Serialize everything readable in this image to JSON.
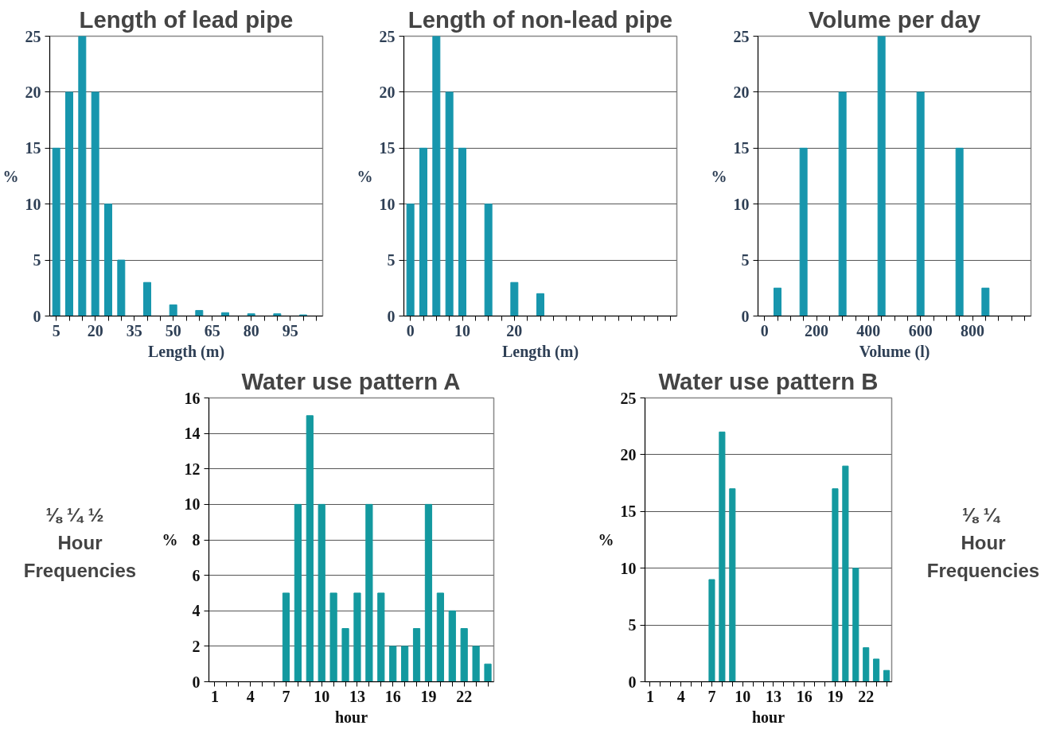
{
  "chart_data": [
    {
      "type": "bar",
      "title": "Length of lead pipe",
      "xlabel": "Length (m)",
      "ylabel": "%",
      "x": [
        5,
        10,
        15,
        20,
        25,
        30,
        40,
        50,
        60,
        70,
        80,
        90,
        100
      ],
      "series": [
        {
          "color": "#1796ad",
          "values": [
            15,
            20,
            25,
            20,
            10,
            5,
            3,
            1,
            0.5,
            0.3,
            0.2,
            0.2,
            0.1
          ]
        }
      ],
      "xlim": [
        2.5,
        107.5
      ],
      "xticks": [
        5,
        {
          "value": 10,
          "label": null
        },
        {
          "value": 15,
          "label": null
        },
        20,
        {
          "value": 25,
          "label": null
        },
        {
          "value": 30,
          "label": null
        },
        35,
        {
          "value": 40,
          "label": null
        },
        {
          "value": 45,
          "label": null
        },
        50,
        {
          "value": 55,
          "label": null
        },
        {
          "value": 60,
          "label": null
        },
        65,
        {
          "value": 70,
          "label": null
        },
        {
          "value": 75,
          "label": null
        },
        80,
        {
          "value": 85,
          "label": null
        },
        {
          "value": 90,
          "label": null
        },
        95,
        {
          "value": 100,
          "label": null
        },
        {
          "value": 105,
          "label": null
        }
      ],
      "ylim": [
        0,
        25
      ],
      "yticks": [
        0,
        5,
        10,
        15,
        20,
        25
      ],
      "grid": "y"
    },
    {
      "type": "bar",
      "title": "Length of non-lead pipe",
      "xlabel": "Length (m)",
      "ylabel": "%",
      "x": [
        0,
        2.5,
        5,
        7.5,
        10,
        15,
        20,
        25
      ],
      "series": [
        {
          "color": "#1796ad",
          "values": [
            10,
            15,
            25,
            20,
            15,
            10,
            3,
            2
          ]
        }
      ],
      "xlim": [
        -1.25,
        51.25
      ],
      "xticks": [
        0,
        {
          "value": 2.5,
          "label": null
        },
        {
          "value": 5,
          "label": null
        },
        {
          "value": 7.5,
          "label": null
        },
        10,
        {
          "value": 12.5,
          "label": null
        },
        {
          "value": 15,
          "label": null
        },
        {
          "value": 17.5,
          "label": null
        },
        20,
        {
          "value": 22.5,
          "label": null
        },
        {
          "value": 25,
          "label": null
        },
        {
          "value": 27.5,
          "label": null
        },
        {
          "value": 30,
          "label": null
        },
        {
          "value": 32.5,
          "label": null
        },
        {
          "value": 35,
          "label": null
        },
        {
          "value": 37.5,
          "label": null
        },
        {
          "value": 40,
          "label": null
        },
        {
          "value": 42.5,
          "label": null
        },
        {
          "value": 45,
          "label": null
        },
        {
          "value": 47.5,
          "label": null
        },
        {
          "value": 50,
          "label": null
        }
      ],
      "ylim": [
        0,
        25
      ],
      "yticks": [
        0,
        5,
        10,
        15,
        20,
        25
      ],
      "grid": "y"
    },
    {
      "type": "bar",
      "title": "Volume per day",
      "xlabel": "Volume (l)",
      "ylabel": "%",
      "x": [
        50,
        150,
        300,
        450,
        600,
        750,
        850
      ],
      "series": [
        {
          "color": "#1796ad",
          "values": [
            2.5,
            15,
            20,
            25,
            20,
            15,
            2.5
          ]
        }
      ],
      "xlim": [
        -25,
        1025
      ],
      "xticks": [
        0,
        {
          "value": 50,
          "label": null
        },
        {
          "value": 100,
          "label": null
        },
        {
          "value": 150,
          "label": null
        },
        200,
        {
          "value": 250,
          "label": null
        },
        {
          "value": 300,
          "label": null
        },
        {
          "value": 350,
          "label": null
        },
        400,
        {
          "value": 450,
          "label": null
        },
        {
          "value": 500,
          "label": null
        },
        {
          "value": 550,
          "label": null
        },
        600,
        {
          "value": 650,
          "label": null
        },
        {
          "value": 700,
          "label": null
        },
        {
          "value": 750,
          "label": null
        },
        800,
        {
          "value": 850,
          "label": null
        },
        {
          "value": 900,
          "label": null
        },
        {
          "value": 950,
          "label": null
        },
        {
          "value": 1000,
          "label": null
        }
      ],
      "ylim": [
        0,
        25
      ],
      "yticks": [
        0,
        5,
        10,
        15,
        20,
        25
      ],
      "grid": "y"
    },
    {
      "type": "bar",
      "title": "Water use pattern A",
      "xlabel": "hour",
      "ylabel": "%",
      "x": [
        1,
        2,
        3,
        4,
        5,
        6,
        7,
        8,
        9,
        10,
        11,
        12,
        13,
        14,
        15,
        16,
        17,
        18,
        19,
        20,
        21,
        22,
        23,
        24
      ],
      "series": [
        {
          "color": "#13999f",
          "values": [
            0,
            0,
            0,
            0,
            0,
            0,
            5,
            10,
            15,
            10,
            5,
            3,
            5,
            10,
            5,
            2,
            2,
            3,
            10,
            5,
            4,
            3,
            2,
            1
          ]
        }
      ],
      "xlim": [
        0.5,
        24.5
      ],
      "xticks": [
        1,
        {
          "value": 2,
          "label": null
        },
        {
          "value": 3,
          "label": null
        },
        4,
        {
          "value": 5,
          "label": null
        },
        {
          "value": 6,
          "label": null
        },
        7,
        {
          "value": 8,
          "label": null
        },
        {
          "value": 9,
          "label": null
        },
        10,
        {
          "value": 11,
          "label": null
        },
        {
          "value": 12,
          "label": null
        },
        13,
        {
          "value": 14,
          "label": null
        },
        {
          "value": 15,
          "label": null
        },
        16,
        {
          "value": 17,
          "label": null
        },
        {
          "value": 18,
          "label": null
        },
        19,
        {
          "value": 20,
          "label": null
        },
        {
          "value": 21,
          "label": null
        },
        22,
        {
          "value": 23,
          "label": null
        },
        {
          "value": 24,
          "label": null
        }
      ],
      "ylim": [
        0,
        16
      ],
      "yticks": [
        0,
        2,
        4,
        6,
        8,
        10,
        12,
        14,
        16
      ],
      "grid": "y",
      "annotations": [
        "⅛  ¼  ½\nHour\nFrequencies"
      ]
    },
    {
      "type": "bar",
      "title": "Water use pattern B",
      "xlabel": "hour",
      "ylabel": "%",
      "x": [
        1,
        2,
        3,
        4,
        5,
        6,
        7,
        8,
        9,
        10,
        11,
        12,
        13,
        14,
        15,
        16,
        17,
        18,
        19,
        20,
        21,
        22,
        23,
        24
      ],
      "series": [
        {
          "color": "#13999f",
          "values": [
            0,
            0,
            0,
            0,
            0,
            0,
            9,
            22,
            17,
            0,
            0,
            0,
            0,
            0,
            0,
            0,
            0,
            0,
            17,
            19,
            10,
            3,
            2,
            1
          ]
        }
      ],
      "xlim": [
        0.5,
        24.5
      ],
      "xticks": [
        1,
        {
          "value": 2,
          "label": null
        },
        {
          "value": 3,
          "label": null
        },
        4,
        {
          "value": 5,
          "label": null
        },
        {
          "value": 6,
          "label": null
        },
        7,
        {
          "value": 8,
          "label": null
        },
        {
          "value": 9,
          "label": null
        },
        10,
        {
          "value": 11,
          "label": null
        },
        {
          "value": 12,
          "label": null
        },
        13,
        {
          "value": 14,
          "label": null
        },
        {
          "value": 15,
          "label": null
        },
        16,
        {
          "value": 17,
          "label": null
        },
        {
          "value": 18,
          "label": null
        },
        19,
        {
          "value": 20,
          "label": null
        },
        {
          "value": 21,
          "label": null
        },
        22,
        {
          "value": 23,
          "label": null
        },
        {
          "value": 24,
          "label": null
        }
      ],
      "ylim": [
        0,
        25
      ],
      "yticks": [
        0,
        5,
        10,
        15,
        20,
        25
      ],
      "grid": "y",
      "annotations": [
        "⅛  ¼\nHour\nFrequencies"
      ]
    }
  ]
}
